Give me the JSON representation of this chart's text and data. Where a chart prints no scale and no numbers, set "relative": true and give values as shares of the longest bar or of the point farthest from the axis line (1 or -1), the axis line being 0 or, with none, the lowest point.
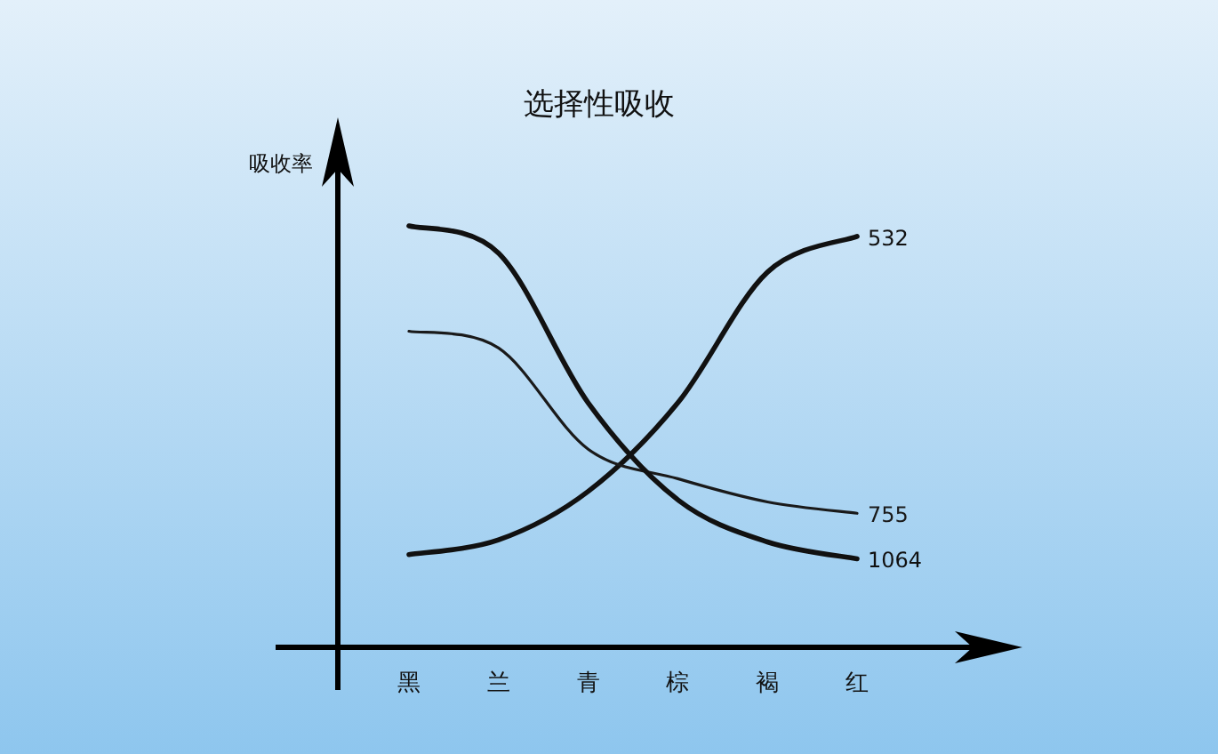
{
  "chart_data": {
    "type": "line",
    "title": "选择性吸收",
    "ylabel": "吸收率",
    "relative": true,
    "categories": [
      "黑",
      "兰",
      "青",
      "棕",
      "褐",
      "红"
    ],
    "tick_labels": "x",
    "series": [
      {
        "name": "532",
        "color": "#111111",
        "values": [
          0.22,
          0.255,
          0.37,
          0.58,
          0.89,
          0.975
        ]
      },
      {
        "name": "755",
        "color": "#1a1a1a",
        "values": [
          0.75,
          0.71,
          0.47,
          0.4,
          0.345,
          0.318
        ]
      },
      {
        "name": "1064",
        "color": "#111111",
        "values": [
          1,
          0.935,
          0.58,
          0.35,
          0.25,
          0.21
        ]
      }
    ]
  }
}
